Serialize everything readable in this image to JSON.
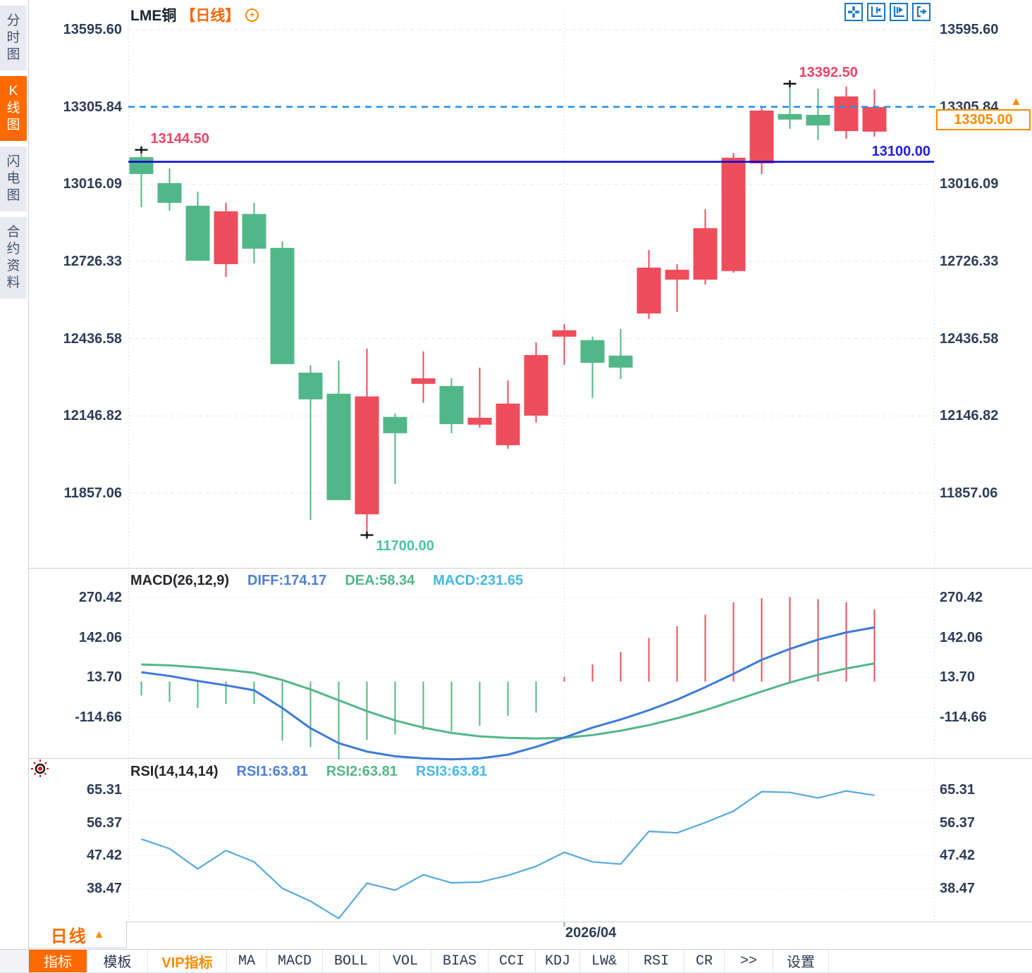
{
  "window": {
    "title": "LME铜 日线 K线图"
  },
  "colors": {
    "up": "#ee4d5c",
    "down": "#52b788",
    "accent_orange": "#ff6a00",
    "badge_orange": "#ff8a00",
    "hline_solid": "#0000d0",
    "hline_dashed": "#1e90f0",
    "diff_line": "#3d7bd8",
    "dea_line": "#52b788",
    "rsi_line": "#55aade",
    "axis_text": "#2e3c58",
    "grid": "#e6e6ec",
    "divider": "#c9cfdc",
    "label_red": "#ee4466",
    "label_green": "#4fc3a1",
    "label_blue": "#2020e0",
    "icon_blue": "#1877c2"
  },
  "sidebar": {
    "items": [
      {
        "label": "分时图",
        "active": false
      },
      {
        "label": "K线图",
        "active": true
      },
      {
        "label": "闪电图",
        "active": false
      },
      {
        "label": "合约资料",
        "active": false
      }
    ]
  },
  "header": {
    "symbol": "LME铜",
    "period_tag": "【日线】",
    "add_icon": "+",
    "toolbar_icons": [
      "move-icon",
      "fit-x-axis-icon",
      "fit-y-axis-icon",
      "pan-right-icon"
    ]
  },
  "chart_data": [
    {
      "type": "candlestick",
      "title": "LME铜【日线】",
      "y_ticks": [
        "13595.60",
        "13305.84",
        "13016.09",
        "12726.33",
        "12436.58",
        "12146.82",
        "11857.06"
      ],
      "y_range": [
        11857.06,
        13595.6
      ],
      "last_price": "13305.00",
      "hlines": [
        {
          "value": 13305.84,
          "style": "dashed",
          "color": "blue"
        },
        {
          "value": 13100.0,
          "style": "solid",
          "color": "navy",
          "label": "13100.00"
        }
      ],
      "annotations": [
        {
          "index": 0,
          "at": "high",
          "text": "13144.50",
          "color": "red"
        },
        {
          "index": 8,
          "at": "low",
          "text": "11700.00",
          "color": "green"
        },
        {
          "index": 23,
          "at": "high",
          "text": "13392.50",
          "color": "red"
        }
      ],
      "candles": [
        [
          13117,
          13144.5,
          12930,
          13054
        ],
        [
          13020,
          13075,
          12917,
          12946
        ],
        [
          12935,
          12988,
          12729,
          12729
        ],
        [
          12716,
          12946,
          12668,
          12914
        ],
        [
          12904,
          12946,
          12719,
          12774
        ],
        [
          12777,
          12801,
          12341,
          12341
        ],
        [
          12309,
          12336,
          11757,
          12209
        ],
        [
          12230,
          12354,
          11831,
          11831
        ],
        [
          11778,
          12399,
          11700,
          12220
        ],
        [
          12143,
          12156,
          11892,
          12082
        ],
        [
          12267,
          12389,
          12196,
          12288
        ],
        [
          12259,
          12288,
          12082,
          12116
        ],
        [
          12114,
          12328,
          12103,
          12140
        ],
        [
          12037,
          12280,
          12024,
          12193
        ],
        [
          12148,
          12423,
          12122,
          12375
        ],
        [
          12444,
          12491,
          12338,
          12468
        ],
        [
          12431,
          12444,
          12214,
          12346
        ],
        [
          12373,
          12473,
          12285,
          12328
        ],
        [
          12531,
          12769,
          12510,
          12703
        ],
        [
          12658,
          12716,
          12536,
          12695
        ],
        [
          12658,
          12922,
          12640,
          12851
        ],
        [
          12690,
          13133,
          12684,
          13115
        ],
        [
          13094,
          13302,
          13054,
          13292
        ],
        [
          13279,
          13392.5,
          13223,
          13258
        ],
        [
          13276,
          13374,
          13181,
          13236
        ],
        [
          13215,
          13382,
          13186,
          13345
        ],
        [
          13213,
          13371,
          13194,
          13305
        ]
      ]
    },
    {
      "type": "bar",
      "name": "MACD(26,12,9)",
      "legend": [
        {
          "label": "DIFF:174.17"
        },
        {
          "label": "DEA:58.34"
        },
        {
          "label": "MACD:231.65"
        }
      ],
      "y_ticks": [
        "270.42",
        "142.06",
        "13.70",
        "-114.66"
      ],
      "histogram": [
        -45,
        -65,
        -85,
        -72,
        -72,
        -190,
        -210,
        -250,
        -188,
        -170,
        -155,
        -160,
        -142,
        -110,
        -100,
        15,
        55,
        95,
        140,
        178,
        215,
        255,
        268,
        272,
        265,
        255,
        231.65
      ],
      "series": [
        {
          "name": "DIFF",
          "values": [
            30,
            18,
            2,
            -12,
            -28,
            -85,
            -150,
            -198,
            -225,
            -240,
            -247,
            -250,
            -247,
            -235,
            -210,
            -180,
            -148,
            -122,
            -92,
            -58,
            -18,
            25,
            70,
            105,
            135,
            158,
            174.17
          ]
        },
        {
          "name": "DEA",
          "values": [
            55,
            52,
            46,
            38,
            28,
            5,
            -25,
            -60,
            -95,
            -125,
            -148,
            -165,
            -176,
            -181,
            -183,
            -181,
            -172,
            -158,
            -140,
            -118,
            -92,
            -62,
            -32,
            -3,
            22,
            42,
            58.34
          ]
        }
      ]
    },
    {
      "type": "line",
      "name": "RSI(14,14,14)",
      "legend": [
        {
          "label": "RSI1:63.81"
        },
        {
          "label": "RSI2:63.81"
        },
        {
          "label": "RSI3:63.81"
        }
      ],
      "y_ticks": [
        "65.31",
        "56.37",
        "47.42",
        "38.47"
      ],
      "values": [
        51.9,
        49.3,
        43.8,
        48.8,
        45.7,
        38.5,
        35.0,
        30.3,
        39.9,
        38.0,
        42.2,
        40.0,
        40.2,
        42.0,
        44.5,
        48.3,
        45.7,
        45.1,
        54.0,
        53.6,
        56.4,
        59.5,
        64.8,
        64.6,
        63.1,
        65.0,
        63.81
      ]
    }
  ],
  "x_axis": {
    "label": "2026/04"
  },
  "bottom": {
    "period_box": {
      "label": "日线",
      "arrow": "▲"
    },
    "tabs": [
      {
        "label": "指标",
        "style": "active"
      },
      {
        "label": "模板",
        "style": ""
      },
      {
        "label": "VIP指标",
        "style": "vip"
      },
      {
        "label": "MA",
        "style": ""
      },
      {
        "label": "MACD",
        "style": ""
      },
      {
        "label": "BOLL",
        "style": ""
      },
      {
        "label": "VOL",
        "style": ""
      },
      {
        "label": "BIAS",
        "style": ""
      },
      {
        "label": "CCI",
        "style": ""
      },
      {
        "label": "KDJ",
        "style": ""
      },
      {
        "label": "LW&",
        "style": ""
      },
      {
        "label": "RSI",
        "style": ""
      },
      {
        "label": "CR",
        "style": ""
      },
      {
        "label": ">>",
        "style": ""
      },
      {
        "label": "设置",
        "style": ""
      }
    ]
  }
}
